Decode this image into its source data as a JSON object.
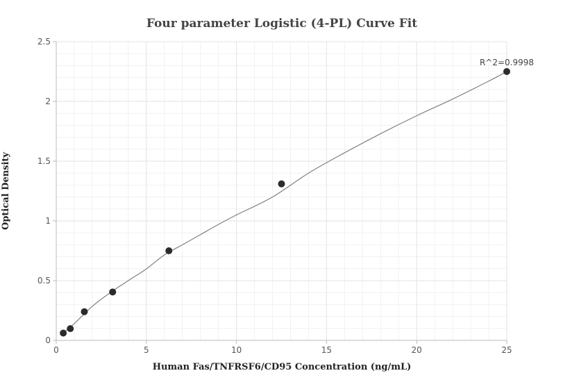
{
  "chart_data": {
    "type": "scatter",
    "title": "Four parameter Logistic (4-PL) Curve Fit",
    "xlabel": "Human Fas/TNFRSF6/CD95 Concentration (ng/mL)",
    "ylabel": "Optical Density",
    "xlim": [
      0,
      25
    ],
    "ylim": [
      0,
      2.5
    ],
    "x_ticks": [
      0,
      5,
      10,
      15,
      20,
      25
    ],
    "y_ticks": [
      0,
      0.5,
      1,
      1.5,
      2,
      2.5
    ],
    "x_tick_labels": [
      "0",
      "5",
      "10",
      "15",
      "20",
      "25"
    ],
    "y_tick_labels": [
      "0",
      "0.5",
      "1",
      "1.5",
      "2",
      "2.5"
    ],
    "grid": true,
    "series": [
      {
        "x": [
          0.39,
          0.78,
          1.56,
          3.13,
          6.25,
          12.5,
          25
        ],
        "y": [
          0.061,
          0.098,
          0.24,
          0.405,
          0.75,
          1.31,
          2.25
        ]
      }
    ],
    "fit_curve": {
      "x": [
        0.39,
        1,
        2,
        3,
        4,
        5,
        6,
        7,
        8,
        9,
        10,
        12,
        14,
        16,
        18,
        20,
        22,
        24,
        25
      ],
      "y": [
        0.062,
        0.14,
        0.285,
        0.4,
        0.5,
        0.598,
        0.715,
        0.8,
        0.885,
        0.97,
        1.05,
        1.2,
        1.4,
        1.57,
        1.73,
        1.88,
        2.02,
        2.17,
        2.25
      ]
    },
    "annotation": {
      "text": "R^2=0.9998",
      "x": 25,
      "y": 2.25
    }
  }
}
